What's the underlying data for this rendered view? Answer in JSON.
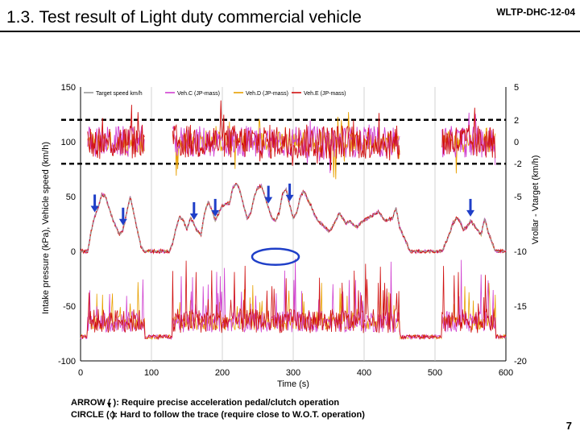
{
  "header": {
    "title": "1.3. Test result of Light duty commercial vehicle",
    "doc_id": "WLTP-DHC-12-04"
  },
  "footer": {
    "page_number": "7",
    "note_arrow": "ARROW (  ): Require precise acceleration pedal/clutch operation",
    "note_circle": "CIRCLE (  ): Hard to follow the trace (require close to W.O.T. operation)"
  },
  "colors": {
    "target": "#9a9a9a",
    "veh_c": "#d040d0",
    "veh_d": "#e8a000",
    "veh_e": "#d01010",
    "arrow": "#1f3fc8",
    "circle": "#1f3fc8"
  },
  "chart_data": {
    "type": "line",
    "title": "",
    "xlabel": "Time (s)",
    "ylabel_left": "Intake pressure (kPa), Vehicle speed (km/h)",
    "ylabel_right": "Vrollar - Vtarget (km/h)",
    "xlim": [
      0,
      600
    ],
    "ylim_left": [
      -100,
      150
    ],
    "ylim_right": [
      -20,
      5
    ],
    "x_ticks": [
      "0",
      "100",
      "200",
      "300",
      "400",
      "500",
      "600"
    ],
    "y_ticks_left": [
      "150",
      "100",
      "50",
      "0",
      "-50",
      "-100"
    ],
    "y_ticks_right": [
      "5",
      "2",
      "0",
      "-2",
      "-5",
      "-10",
      "-15",
      "-20"
    ],
    "legend": [
      "Target speed km/h",
      "Veh.C (JP-mass)",
      "Veh.D (JP-mass)",
      "Veh.E (JP-mass)"
    ],
    "tolerance_band_right": [
      2,
      -2
    ],
    "grid_x": [
      0,
      100,
      200,
      300,
      400,
      500,
      600
    ],
    "series": [
      {
        "name": "Target speed km/h",
        "x": [
          0,
          10,
          15,
          20,
          25,
          30,
          35,
          45,
          55,
          60,
          65,
          70,
          75,
          80,
          85,
          90,
          100,
          115,
          125,
          130,
          135,
          140,
          145,
          150,
          155,
          160,
          165,
          170,
          175,
          180,
          185,
          190,
          200,
          210,
          215,
          220,
          225,
          230,
          235,
          240,
          245,
          250,
          255,
          260,
          265,
          270,
          275,
          280,
          285,
          290,
          295,
          300,
          305,
          310,
          315,
          320,
          325,
          330,
          335,
          340,
          345,
          350,
          355,
          360,
          365,
          370,
          375,
          380,
          385,
          390,
          395,
          400,
          410,
          420,
          430,
          440,
          445,
          450,
          465,
          480,
          490,
          500,
          510,
          520,
          525,
          530,
          535,
          540,
          545,
          550,
          555,
          560,
          565,
          570,
          575,
          585,
          600
        ],
        "values": [
          0,
          0,
          18,
          32,
          40,
          52,
          50,
          30,
          15,
          20,
          35,
          50,
          35,
          20,
          5,
          0,
          0,
          0,
          0,
          8,
          22,
          32,
          28,
          20,
          30,
          25,
          18,
          15,
          35,
          45,
          38,
          28,
          42,
          44,
          58,
          62,
          55,
          42,
          30,
          35,
          50,
          58,
          60,
          50,
          40,
          30,
          28,
          35,
          52,
          57,
          42,
          30,
          35,
          50,
          55,
          48,
          42,
          33,
          28,
          25,
          22,
          18,
          22,
          28,
          35,
          30,
          25,
          28,
          24,
          22,
          26,
          28,
          32,
          36,
          28,
          30,
          40,
          22,
          0,
          0,
          0,
          0,
          0,
          15,
          25,
          30,
          28,
          20,
          22,
          28,
          24,
          20,
          15,
          30,
          18,
          0,
          0
        ]
      }
    ],
    "annotations": {
      "arrows_at_time_s": [
        20,
        60,
        160,
        190,
        265,
        295,
        550
      ],
      "circle_at_time_s": 275
    }
  }
}
